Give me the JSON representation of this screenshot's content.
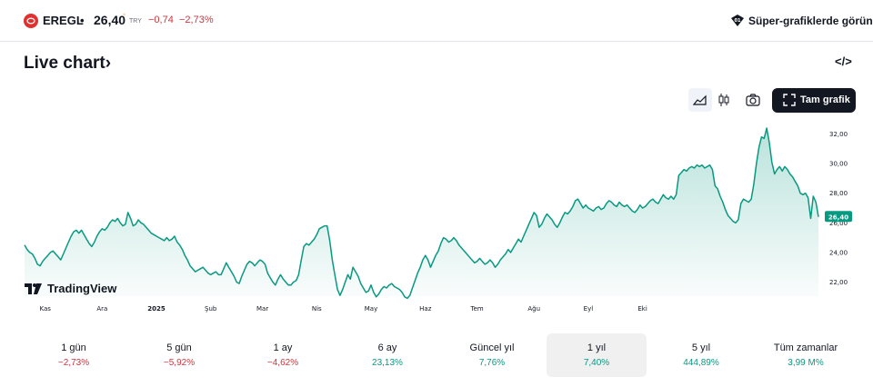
{
  "header": {
    "symbol": "EREGL",
    "separator": "•",
    "price": "26,40",
    "price_marker": "◦",
    "currency": "TRY",
    "change": "−0,74",
    "change_percent": "−2,73%",
    "super_charts_link": "Süper-grafiklerde görün"
  },
  "section": {
    "title": "Live chart",
    "title_chevron": "›",
    "embed_icon_text": "</>"
  },
  "toolbar": {
    "full_chart_label": "Tam grafik",
    "icons": [
      "area-chart-icon",
      "candlestick-icon",
      "camera-icon",
      "fullscreen-icon"
    ]
  },
  "branding": {
    "text": "TradingView"
  },
  "colors": {
    "line": "#089981",
    "negative": "#d1343c",
    "positive": "#089981",
    "accent": "#131722"
  },
  "chart_data": {
    "type": "area",
    "last_value_label": "26,40",
    "y_ticks": [
      "32,00",
      "30,00",
      "28,00",
      "26,00",
      "24,00",
      "22,00"
    ],
    "ylim": [
      20.8,
      33.0
    ],
    "x_labels": [
      {
        "label": "Kas",
        "index": 8,
        "bold": false
      },
      {
        "label": "Ara",
        "index": 30,
        "bold": false
      },
      {
        "label": "2025",
        "index": 51,
        "bold": true
      },
      {
        "label": "Şub",
        "index": 72,
        "bold": false
      },
      {
        "label": "Mar",
        "index": 92,
        "bold": false
      },
      {
        "label": "Nis",
        "index": 113,
        "bold": false
      },
      {
        "label": "May",
        "index": 134,
        "bold": false
      },
      {
        "label": "Haz",
        "index": 155,
        "bold": false
      },
      {
        "label": "Tem",
        "index": 175,
        "bold": false
      },
      {
        "label": "Ağu",
        "index": 197,
        "bold": false
      },
      {
        "label": "Eyl",
        "index": 218,
        "bold": false
      },
      {
        "label": "Eki",
        "index": 239,
        "bold": false
      }
    ],
    "values": [
      24.5,
      24.2,
      24.0,
      23.9,
      23.6,
      23.2,
      23.1,
      23.4,
      23.6,
      23.8,
      24.0,
      24.1,
      23.9,
      23.7,
      23.5,
      23.9,
      24.3,
      24.7,
      25.1,
      25.4,
      25.5,
      25.3,
      25.5,
      25.2,
      24.9,
      24.6,
      24.4,
      24.7,
      25.1,
      25.4,
      25.6,
      25.5,
      25.7,
      26.0,
      26.2,
      26.1,
      26.3,
      26.0,
      25.8,
      25.9,
      26.7,
      26.3,
      25.8,
      25.9,
      26.2,
      26.0,
      25.9,
      25.7,
      25.5,
      25.3,
      25.2,
      25.1,
      25.0,
      24.9,
      24.8,
      25.0,
      24.8,
      24.9,
      25.1,
      24.7,
      24.5,
      24.2,
      23.8,
      23.5,
      23.1,
      22.9,
      22.7,
      22.8,
      22.9,
      23.0,
      22.8,
      22.6,
      22.5,
      22.6,
      22.7,
      22.5,
      22.5,
      22.9,
      23.3,
      23.0,
      22.7,
      22.4,
      22.0,
      21.9,
      22.4,
      22.8,
      23.2,
      23.4,
      23.3,
      23.1,
      23.3,
      23.5,
      23.4,
      23.2,
      22.6,
      22.3,
      22.0,
      21.8,
      22.2,
      22.5,
      22.2,
      22.0,
      21.8,
      21.8,
      22.0,
      22.1,
      22.5,
      23.5,
      24.4,
      24.6,
      24.5,
      24.7,
      24.9,
      25.2,
      25.6,
      25.7,
      25.8,
      25.8,
      24.8,
      23.5,
      22.5,
      21.5,
      21.1,
      21.5,
      22.0,
      22.5,
      22.2,
      23.0,
      22.7,
      22.4,
      21.9,
      21.6,
      21.3,
      21.4,
      21.8,
      21.3,
      21.0,
      21.2,
      21.5,
      21.7,
      21.6,
      21.8,
      21.9,
      21.7,
      21.6,
      21.5,
      21.3,
      21.0,
      20.9,
      21.1,
      21.6,
      22.1,
      22.6,
      23.0,
      23.5,
      23.8,
      23.5,
      23.0,
      23.4,
      23.8,
      24.1,
      24.6,
      25.0,
      24.9,
      24.7,
      24.8,
      25.0,
      24.8,
      24.5,
      24.3,
      24.1,
      23.9,
      23.7,
      23.5,
      23.3,
      23.4,
      23.6,
      23.4,
      23.2,
      23.3,
      23.5,
      23.3,
      23.0,
      23.2,
      23.5,
      23.7,
      23.9,
      24.2,
      24.0,
      24.3,
      24.6,
      24.9,
      24.7,
      25.1,
      25.5,
      25.9,
      26.3,
      26.7,
      26.5,
      25.7,
      25.9,
      26.3,
      26.6,
      26.4,
      26.2,
      25.9,
      25.7,
      26.0,
      26.4,
      26.7,
      26.6,
      26.8,
      27.1,
      27.5,
      27.6,
      27.3,
      27.0,
      27.2,
      27.0,
      26.9,
      26.8,
      27.0,
      27.1,
      26.9,
      27.0,
      27.3,
      27.5,
      27.4,
      27.2,
      27.1,
      27.4,
      27.2,
      27.1,
      27.2,
      27.0,
      26.8,
      26.7,
      26.9,
      27.2,
      27.0,
      27.1,
      27.3,
      27.5,
      27.6,
      27.4,
      27.3,
      27.6,
      27.9,
      27.7,
      27.6,
      27.8,
      27.6,
      27.9,
      29.2,
      29.4,
      29.6,
      29.5,
      29.7,
      29.8,
      29.7,
      29.9,
      29.8,
      29.9,
      29.7,
      29.8,
      29.9,
      29.6,
      28.5,
      28.3,
      27.8,
      27.4,
      26.9,
      26.5,
      26.3,
      26.1,
      26.0,
      26.2,
      27.3,
      27.6,
      27.5,
      27.4,
      27.6,
      28.6,
      30.0,
      31.1,
      31.8,
      31.7,
      32.4,
      31.4,
      30.1,
      29.3,
      29.6,
      29.8,
      29.5,
      29.8,
      29.6,
      29.3,
      29.1,
      28.8,
      28.5,
      28.0,
      27.9,
      28.0,
      27.7,
      26.3,
      27.8,
      27.4,
      26.4
    ],
    "title": "",
    "xlabel": "",
    "ylabel": ""
  },
  "periods": [
    {
      "label": "1 gün",
      "value": "−2,73%",
      "sign": "neg",
      "active": false
    },
    {
      "label": "5 gün",
      "value": "−5,92%",
      "sign": "neg",
      "active": false
    },
    {
      "label": "1 ay",
      "value": "−4,62%",
      "sign": "neg",
      "active": false
    },
    {
      "label": "6 ay",
      "value": "23,13%",
      "sign": "pos",
      "active": false
    },
    {
      "label": "Güncel yıl",
      "value": "7,76%",
      "sign": "pos",
      "active": false
    },
    {
      "label": "1 yıl",
      "value": "7,40%",
      "sign": "pos",
      "active": true
    },
    {
      "label": "5 yıl",
      "value": "444,89%",
      "sign": "pos",
      "active": false
    },
    {
      "label": "Tüm zamanlar",
      "value": "3,99 M%",
      "sign": "pos",
      "active": false
    }
  ]
}
